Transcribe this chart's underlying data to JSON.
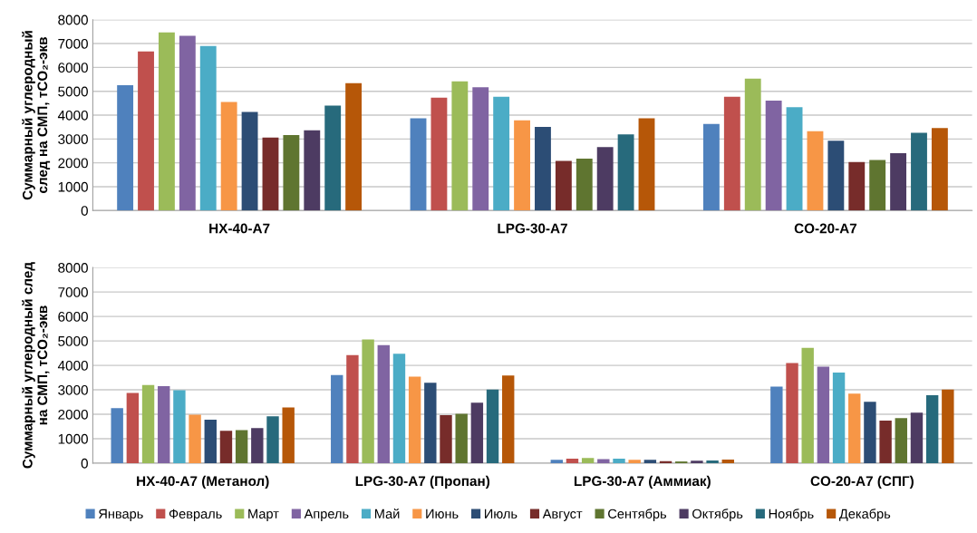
{
  "chart_data": [
    {
      "type": "bar",
      "categories": [
        "HX-40-A7",
        "LPG-30-A7",
        "CO-20-A7"
      ],
      "ylabel": "Суммарный углеродный\nслед на СМП, тCO₂-экв",
      "ylim": [
        0,
        8000
      ],
      "yticks": [
        0,
        1000,
        2000,
        3000,
        4000,
        5000,
        6000,
        7000,
        8000
      ],
      "grid": "y",
      "legend": "bottom",
      "series": [
        {
          "name": "Январь",
          "color": "#4f81bd",
          "values": [
            5250,
            3870,
            3630
          ]
        },
        {
          "name": "Февраль",
          "color": "#c0504d",
          "values": [
            6670,
            4730,
            4770
          ]
        },
        {
          "name": "Март",
          "color": "#9bbb59",
          "values": [
            7470,
            5420,
            5530
          ]
        },
        {
          "name": "Апрель",
          "color": "#8064a2",
          "values": [
            7330,
            5170,
            4610
          ]
        },
        {
          "name": "Май",
          "color": "#4bacc6",
          "values": [
            6900,
            4770,
            4330
          ]
        },
        {
          "name": "Июнь",
          "color": "#f79646",
          "values": [
            4550,
            3780,
            3330
          ]
        },
        {
          "name": "Июль",
          "color": "#2c4d75",
          "values": [
            4130,
            3510,
            2930
          ]
        },
        {
          "name": "Август",
          "color": "#772c2a",
          "values": [
            3060,
            2080,
            2030
          ]
        },
        {
          "name": "Сентябрь",
          "color": "#5f7530",
          "values": [
            3160,
            2180,
            2120
          ]
        },
        {
          "name": "Октябрь",
          "color": "#4d3b62",
          "values": [
            3360,
            2660,
            2400
          ]
        },
        {
          "name": "Ноябрь",
          "color": "#276a7c",
          "values": [
            4400,
            3190,
            3260
          ]
        },
        {
          "name": "Декабрь",
          "color": "#b65708",
          "values": [
            5340,
            3870,
            3460
          ]
        }
      ]
    },
    {
      "type": "bar",
      "categories": [
        "HX-40-A7 (Метанол)",
        "LPG-30-A7 (Пропан)",
        "LPG-30-A7 (Аммиак)",
        "CO-20-A7 (СПГ)"
      ],
      "ylabel": "Суммарный углеродный след\nна СМП, тCO₂-экв",
      "ylim": [
        0,
        8000
      ],
      "yticks": [
        0,
        1000,
        2000,
        3000,
        4000,
        5000,
        6000,
        7000,
        8000
      ],
      "grid": "y",
      "series": [
        {
          "color": "#4f81bd",
          "values": [
            2250,
            3600,
            140,
            3130
          ]
        },
        {
          "color": "#c0504d",
          "values": [
            2870,
            4420,
            180,
            4100
          ]
        },
        {
          "color": "#9bbb59",
          "values": [
            3200,
            5060,
            210,
            4720
          ]
        },
        {
          "color": "#8064a2",
          "values": [
            3150,
            4830,
            170,
            3950
          ]
        },
        {
          "color": "#4bacc6",
          "values": [
            2980,
            4480,
            180,
            3710
          ]
        },
        {
          "color": "#f79646",
          "values": [
            1980,
            3540,
            140,
            2840
          ]
        },
        {
          "color": "#2c4d75",
          "values": [
            1780,
            3290,
            140,
            2510
          ]
        },
        {
          "color": "#772c2a",
          "values": [
            1320,
            1960,
            80,
            1740
          ]
        },
        {
          "color": "#5f7530",
          "values": [
            1350,
            2020,
            70,
            1840
          ]
        },
        {
          "color": "#4d3b62",
          "values": [
            1440,
            2470,
            100,
            2070
          ]
        },
        {
          "color": "#276a7c",
          "values": [
            1920,
            3010,
            110,
            2780
          ]
        },
        {
          "color": "#b65708",
          "values": [
            2280,
            3590,
            150,
            3010
          ]
        }
      ]
    }
  ]
}
